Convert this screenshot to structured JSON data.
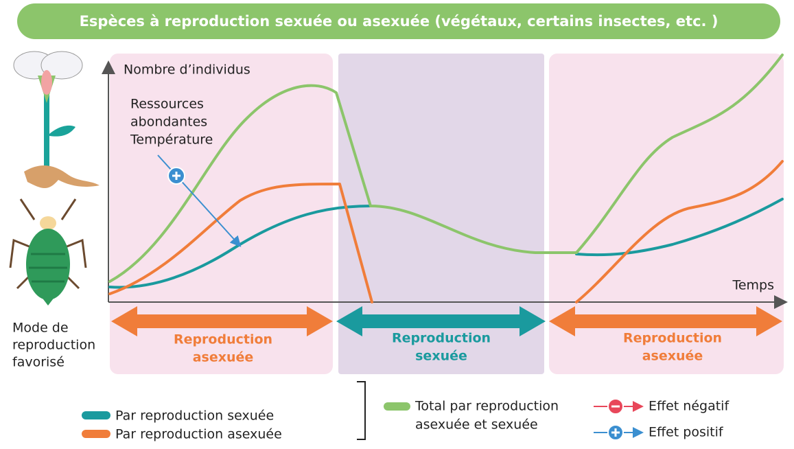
{
  "header": {
    "title": "Espèces à reproduction sexuée ou asexuée (végétaux, certains insectes, etc. )"
  },
  "axes": {
    "y_label": "Nombre d’individus",
    "x_label": "Temps"
  },
  "annotation": {
    "lines": [
      "Ressources",
      "abondantes",
      "Température"
    ]
  },
  "side_label": {
    "lines": [
      "Mode de",
      "reproduction",
      "favorisé"
    ]
  },
  "phases": [
    {
      "lines": [
        "Reproduction",
        "asexuée"
      ]
    },
    {
      "lines": [
        "Reproduction",
        "sexuée"
      ]
    },
    {
      "lines": [
        "Reproduction",
        "asexuée"
      ]
    }
  ],
  "legend": {
    "sexual": "Par reproduction sexuée",
    "asexual": "Par reproduction asexuée",
    "total": [
      "Total par reproduction",
      "asexuée et sexuée"
    ],
    "negative": "Effet négatif",
    "positive": "Effet positif"
  }
}
